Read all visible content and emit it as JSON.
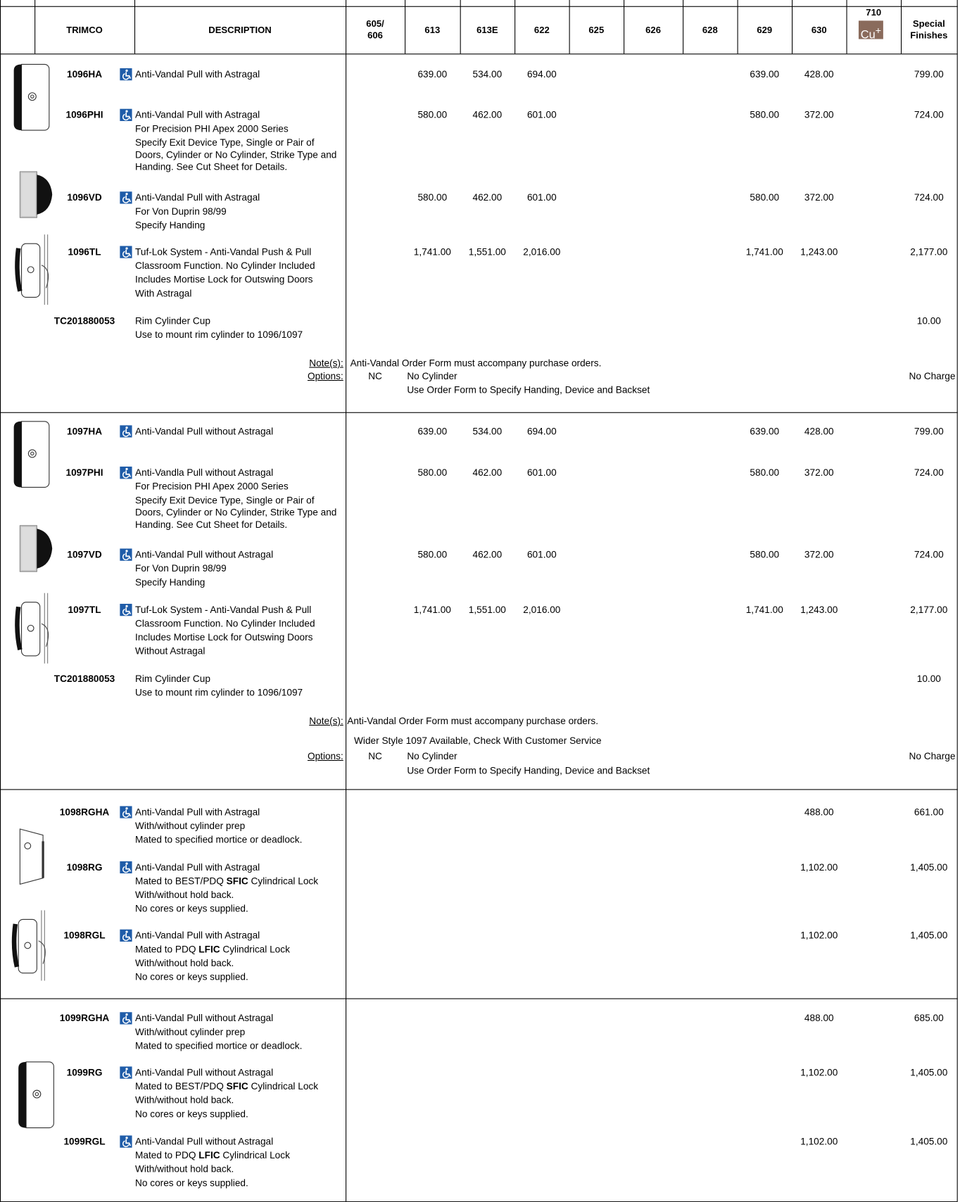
{
  "header": {
    "trimco": "TRIMCO",
    "description": "DESCRIPTION",
    "finishes": [
      "605/\n606",
      "613",
      "613E",
      "622",
      "625",
      "626",
      "628",
      "629",
      "630",
      "710",
      "Special\nFinishes"
    ],
    "cu_icon": {
      "base": "Cu",
      "sup": "+"
    }
  },
  "sections": [
    {
      "rows": [
        {
          "code": "1096HA",
          "ada": true,
          "desc": [
            "Anti-Vandal Pull with Astragal"
          ],
          "prices": [
            null,
            "639.00",
            "534.00",
            "694.00",
            null,
            null,
            null,
            "639.00",
            "428.00",
            null,
            "799.00"
          ]
        },
        {
          "code": "1096PHI",
          "ada": true,
          "desc": [
            "Anti-Vandal Pull with Astragal",
            "For Precision PHI Apex 2000 Series"
          ],
          "details": "Specify Exit Device Type, Single or Pair of Doors, Cylinder or No Cylinder, Strike Type and Handing.  See Cut Sheet for Details.",
          "prices": [
            null,
            "580.00",
            "462.00",
            "601.00",
            null,
            null,
            null,
            "580.00",
            "372.00",
            null,
            "724.00"
          ]
        },
        {
          "code": "1096VD",
          "ada": true,
          "desc": [
            "Anti-Vandal Pull with Astragal",
            "For Von Duprin 98/99",
            "Specify Handing"
          ],
          "prices": [
            null,
            "580.00",
            "462.00",
            "601.00",
            null,
            null,
            null,
            "580.00",
            "372.00",
            null,
            "724.00"
          ]
        },
        {
          "code": "1096TL",
          "ada": true,
          "desc": [
            "Tuf-Lok System - Anti-Vandal Push & Pull",
            "Classroom Function. No Cylinder Included",
            "Includes Mortise Lock for Outswing Doors",
            "With Astragal"
          ],
          "prices": [
            null,
            "1,741.00",
            "1,551.00",
            "2,016.00",
            null,
            null,
            null,
            "1,741.00",
            "1,243.00",
            null,
            "2,177.00"
          ]
        },
        {
          "code": "TC201880053",
          "ada": false,
          "desc": [
            "Rim Cylinder Cup",
            "Use to mount rim cylinder to 1096/1097"
          ],
          "prices": [
            null,
            null,
            null,
            null,
            null,
            null,
            null,
            null,
            null,
            null,
            "10.00"
          ]
        }
      ],
      "notes": {
        "label": "Note(s):",
        "text": "Anti-Vandal Order Form must accompany purchase orders.",
        "options_label": "Options:",
        "option_code": "NC",
        "option_text": "No Cylinder",
        "option_detail": "Use Order Form to Specify Handing, Device and Backset",
        "option_price": "No Charge"
      }
    },
    {
      "rows": [
        {
          "code": "1097HA",
          "ada": true,
          "desc": [
            "Anti-Vandal Pull without Astragal"
          ],
          "prices": [
            null,
            "639.00",
            "534.00",
            "694.00",
            null,
            null,
            null,
            "639.00",
            "428.00",
            null,
            "799.00"
          ]
        },
        {
          "code": "1097PHI",
          "ada": true,
          "desc": [
            "Anti-Vandla Pull without Astragal",
            "For Precision PHI Apex 2000 Series"
          ],
          "details": "Specify Exit Device Type, Single or Pair of Doors, Cylinder or No Cylinder, Strike Type and Handing.  See Cut Sheet for Details.",
          "prices": [
            null,
            "580.00",
            "462.00",
            "601.00",
            null,
            null,
            null,
            "580.00",
            "372.00",
            null,
            "724.00"
          ]
        },
        {
          "code": "1097VD",
          "ada": true,
          "desc": [
            "Anti-Vandal Pull without Astragal",
            "For Von Duprin 98/99",
            "Specify Handing"
          ],
          "prices": [
            null,
            "580.00",
            "462.00",
            "601.00",
            null,
            null,
            null,
            "580.00",
            "372.00",
            null,
            "724.00"
          ]
        },
        {
          "code": "1097TL",
          "ada": true,
          "desc": [
            "Tuf-Lok System - Anti-Vandal Push & Pull",
            "Classroom Function. No Cylinder Included",
            "Includes Mortise Lock for Outswing Doors",
            "Without Astragal"
          ],
          "prices": [
            null,
            "1,741.00",
            "1,551.00",
            "2,016.00",
            null,
            null,
            null,
            "1,741.00",
            "1,243.00",
            null,
            "2,177.00"
          ]
        },
        {
          "code": "TC201880053",
          "ada": false,
          "desc": [
            "Rim Cylinder Cup",
            "Use to mount rim cylinder to 1096/1097"
          ],
          "prices": [
            null,
            null,
            null,
            null,
            null,
            null,
            null,
            null,
            null,
            null,
            "10.00"
          ]
        }
      ],
      "notes": {
        "label": "Note(s):",
        "text": "Anti-Vandal Order Form must accompany purchase orders.",
        "extra": "Wider Style 1097 Available, Check With Customer Service",
        "options_label": "Options:",
        "option_code": "NC",
        "option_text": "No Cylinder",
        "option_detail": "Use Order Form to Specify Handing, Device and Backset",
        "option_price": "No Charge"
      }
    },
    {
      "rows": [
        {
          "code": "1098RGHA",
          "ada": true,
          "desc": [
            "Anti-Vandal Pull with Astragal",
            "With/without cylinder prep",
            "Mated to specified mortice or deadlock."
          ],
          "prices": [
            null,
            null,
            null,
            null,
            null,
            null,
            null,
            null,
            "488.00",
            null,
            "661.00"
          ]
        },
        {
          "code": "1098RG",
          "ada": true,
          "desc": [
            "Anti-Vandal Pull with Astragal",
            {
              "parts": [
                "Mated to BEST/PDQ ",
                "SFIC",
                " Cylindrical Lock"
              ],
              "bold": [
                1
              ]
            },
            "With/without hold back.",
            "No cores or keys supplied."
          ],
          "prices": [
            null,
            null,
            null,
            null,
            null,
            null,
            null,
            null,
            "1,102.00",
            null,
            "1,405.00"
          ]
        },
        {
          "code": "1098RGL",
          "ada": true,
          "desc": [
            "Anti-Vandal Pull with Astragal",
            {
              "parts": [
                "Mated to PDQ ",
                "LFIC",
                " Cylindrical Lock"
              ],
              "bold": [
                1
              ]
            },
            "With/without hold back.",
            "No cores or keys supplied."
          ],
          "prices": [
            null,
            null,
            null,
            null,
            null,
            null,
            null,
            null,
            "1,102.00",
            null,
            "1,405.00"
          ]
        }
      ]
    },
    {
      "rows": [
        {
          "code": "1099RGHA",
          "ada": true,
          "desc": [
            "Anti-Vandal Pull without Astragal",
            "With/without cylinder prep",
            "Mated to specified mortice or deadlock."
          ],
          "prices": [
            null,
            null,
            null,
            null,
            null,
            null,
            null,
            null,
            "488.00",
            null,
            "685.00"
          ]
        },
        {
          "code": "1099RG",
          "ada": true,
          "desc": [
            "Anti-Vandal Pull without Astragal",
            {
              "parts": [
                "Mated to BEST/PDQ ",
                "SFIC",
                " Cylindrical Lock"
              ],
              "bold": [
                1
              ]
            },
            "With/without hold back.",
            "No cores or keys supplied."
          ],
          "prices": [
            null,
            null,
            null,
            null,
            null,
            null,
            null,
            null,
            "1,102.00",
            null,
            "1,405.00"
          ]
        },
        {
          "code": "1099RGL",
          "ada": true,
          "desc": [
            "Anti-Vandal Pull without Astragal",
            {
              "parts": [
                "Mated to PDQ ",
                "LFIC",
                " Cylindrical Lock"
              ],
              "bold": [
                1
              ]
            },
            "With/without hold back.",
            "No cores or keys supplied."
          ],
          "prices": [
            null,
            null,
            null,
            null,
            null,
            null,
            null,
            null,
            "1,102.00",
            null,
            "1,405.00"
          ]
        }
      ]
    }
  ]
}
